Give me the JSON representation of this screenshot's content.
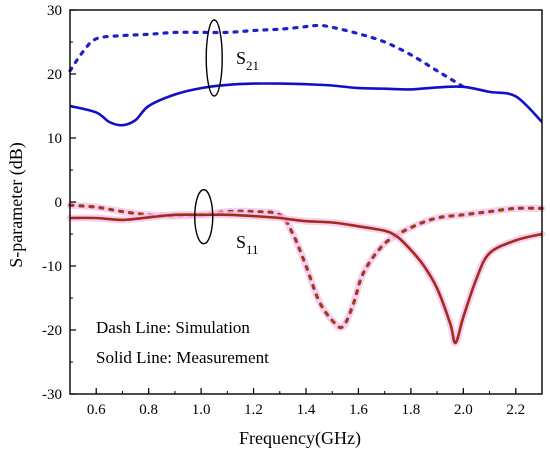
{
  "chart_data": {
    "type": "line",
    "xlabel": "Frequency(GHz)",
    "ylabel": "S-parameter (dB)",
    "xlim": [
      0.5,
      2.3
    ],
    "ylim": [
      -30,
      30
    ],
    "xticks": [
      "0.6",
      "0.8",
      "1.0",
      "1.2",
      "1.4",
      "1.6",
      "1.8",
      "2.0",
      "2.2"
    ],
    "yticks": [
      "30",
      "20",
      "10",
      "0",
      "-10",
      "-20",
      "-30"
    ],
    "legend_text": [
      "Dash Line: Simulation",
      "Solid Line: Measurement"
    ],
    "annotations": [
      {
        "label": "S",
        "sub": "21",
        "x": 1.04,
        "y": 21
      },
      {
        "label": "S",
        "sub": "11",
        "x": 1.0,
        "y": -3
      }
    ],
    "series": [
      {
        "name": "S21 simulation",
        "style": "dotted",
        "color": "#1f1fcc",
        "x": [
          0.5,
          0.55,
          0.6,
          0.7,
          0.8,
          0.9,
          1.0,
          1.1,
          1.2,
          1.3,
          1.4,
          1.45,
          1.5,
          1.6,
          1.7,
          1.8,
          1.9,
          2.0
        ],
        "y": [
          20.5,
          23.5,
          25.5,
          26.0,
          26.2,
          26.5,
          26.5,
          26.5,
          26.8,
          27.0,
          27.4,
          27.6,
          27.3,
          26.3,
          25.0,
          23.0,
          20.5,
          18.0
        ]
      },
      {
        "name": "S21 measurement",
        "style": "solid",
        "color": "#1010c8",
        "x": [
          0.5,
          0.6,
          0.65,
          0.7,
          0.75,
          0.8,
          0.9,
          1.0,
          1.1,
          1.2,
          1.3,
          1.4,
          1.5,
          1.6,
          1.7,
          1.8,
          1.9,
          2.0,
          2.1,
          2.2,
          2.3
        ],
        "y": [
          15.0,
          14.0,
          12.5,
          12.0,
          12.8,
          15.0,
          16.8,
          17.8,
          18.3,
          18.5,
          18.5,
          18.4,
          18.2,
          17.8,
          17.7,
          17.6,
          17.9,
          18.0,
          17.2,
          16.5,
          12.5
        ]
      },
      {
        "name": "S11 simulation",
        "style": "dotted",
        "color": "#a13a1e",
        "x": [
          0.5,
          0.6,
          0.7,
          0.8,
          0.9,
          1.0,
          1.1,
          1.2,
          1.3,
          1.35,
          1.4,
          1.45,
          1.5,
          1.54,
          1.58,
          1.62,
          1.7,
          1.8,
          1.9,
          2.0,
          2.1,
          2.2,
          2.3
        ],
        "y": [
          -0.5,
          -0.8,
          -1.5,
          -2.0,
          -2.2,
          -2.0,
          -1.5,
          -1.5,
          -2.0,
          -5.0,
          -10.0,
          -15.5,
          -18.5,
          -19.5,
          -16.0,
          -11.0,
          -6.5,
          -4.0,
          -2.5,
          -2.0,
          -1.5,
          -1.0,
          -1.0
        ]
      },
      {
        "name": "S11 measurement",
        "style": "solid",
        "color": "#a52a1a",
        "x": [
          0.5,
          0.6,
          0.7,
          0.8,
          0.9,
          1.0,
          1.1,
          1.2,
          1.3,
          1.4,
          1.5,
          1.6,
          1.7,
          1.75,
          1.8,
          1.85,
          1.9,
          1.95,
          1.97,
          2.0,
          2.05,
          2.1,
          2.2,
          2.3
        ],
        "y": [
          -2.5,
          -2.5,
          -2.8,
          -2.4,
          -2.0,
          -2.0,
          -2.0,
          -2.2,
          -2.5,
          -3.0,
          -3.2,
          -3.8,
          -4.5,
          -5.5,
          -7.5,
          -10.0,
          -13.5,
          -19.0,
          -22.0,
          -18.0,
          -12.0,
          -8.0,
          -6.0,
          -5.0
        ]
      }
    ]
  }
}
